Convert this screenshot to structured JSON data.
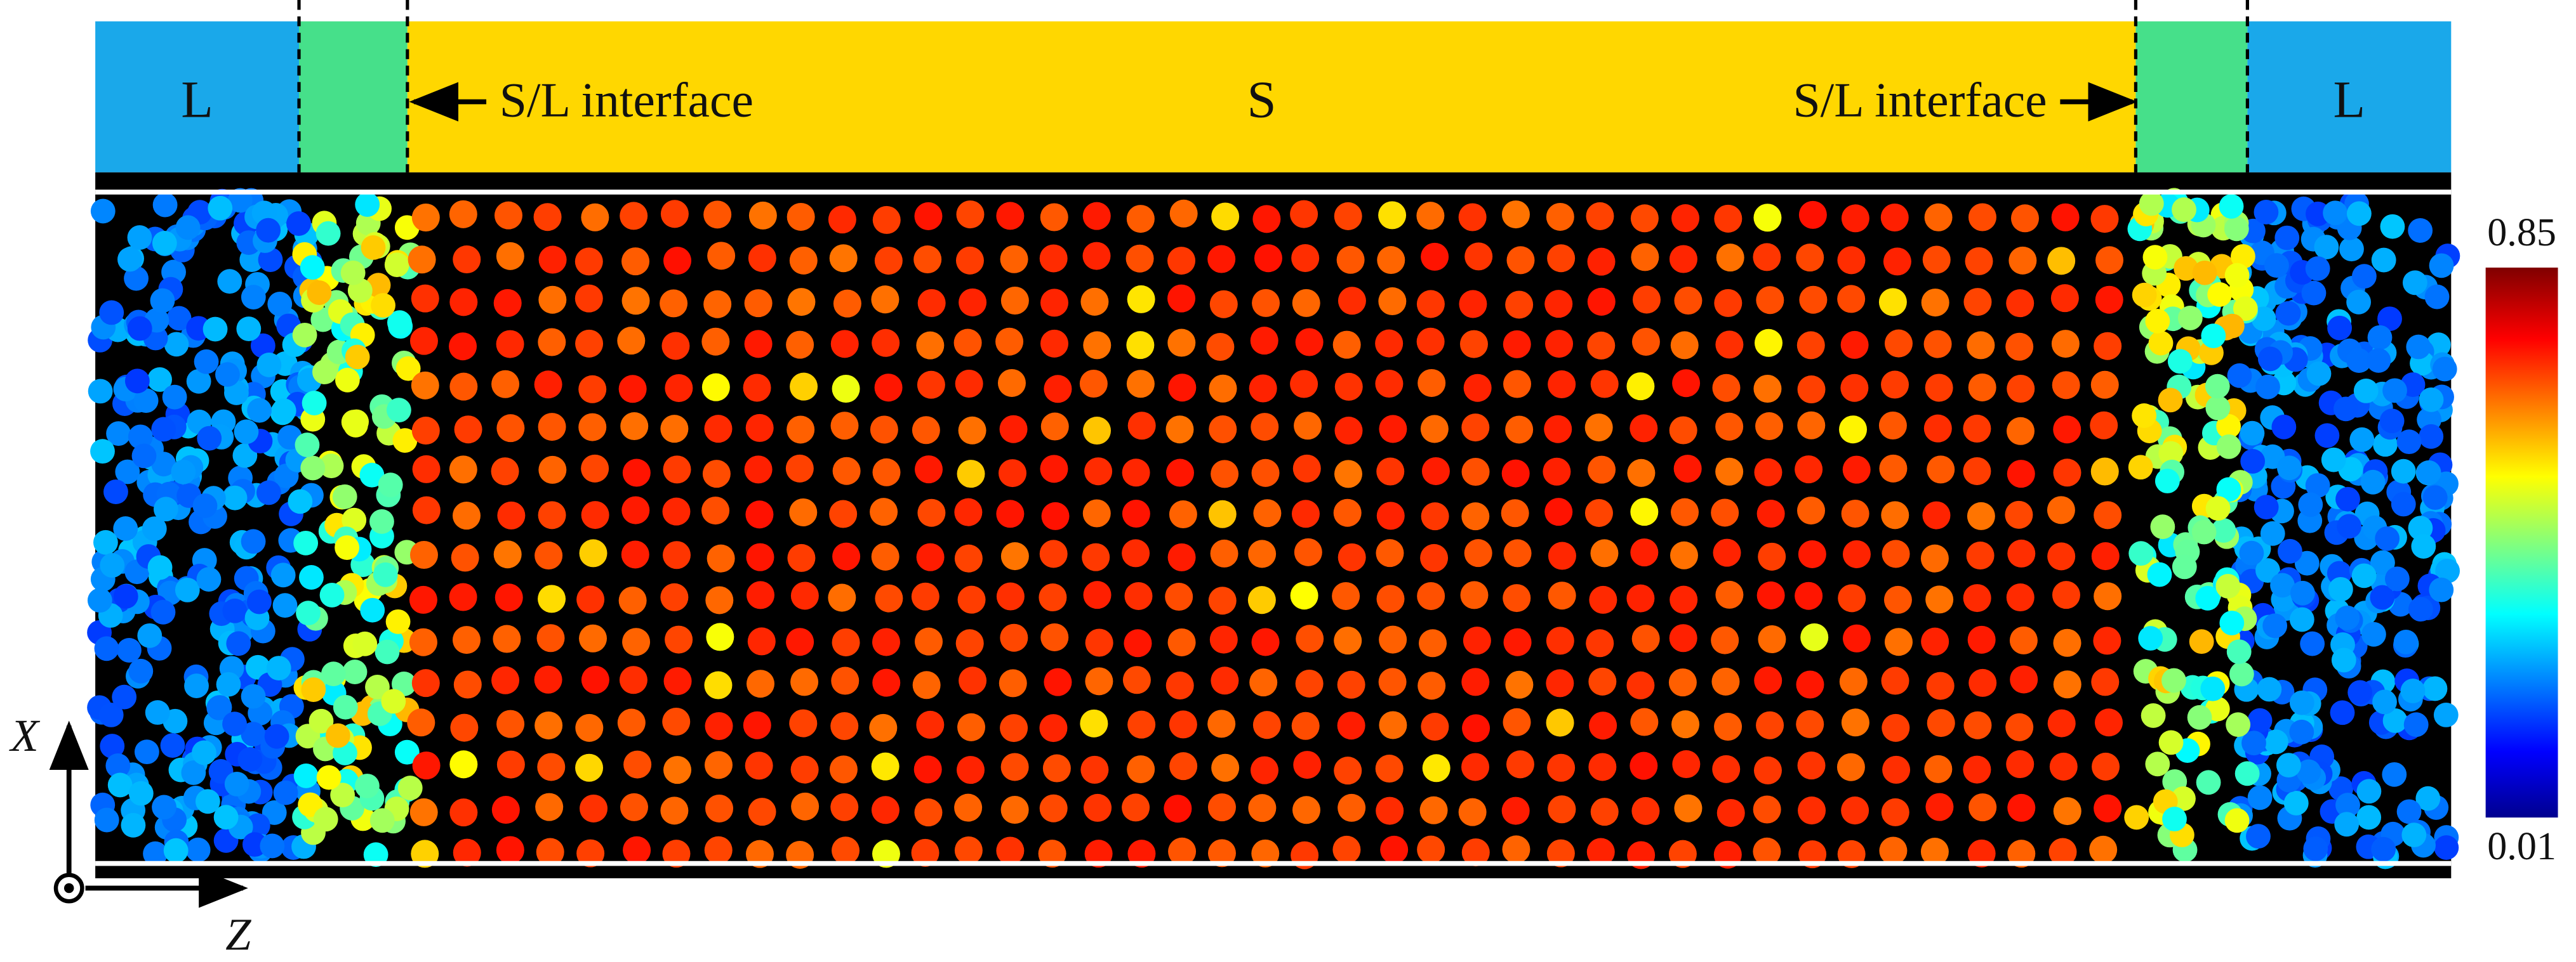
{
  "regions": [
    {
      "label": "L"
    },
    {
      "label": "S/L interface"
    },
    {
      "label": "S"
    },
    {
      "label": "S/L interface"
    },
    {
      "label": "L"
    }
  ],
  "colorbar": {
    "max": 0.85,
    "min": 0.01
  },
  "axes": {
    "vertical": "X",
    "horizontal": "Z"
  }
}
